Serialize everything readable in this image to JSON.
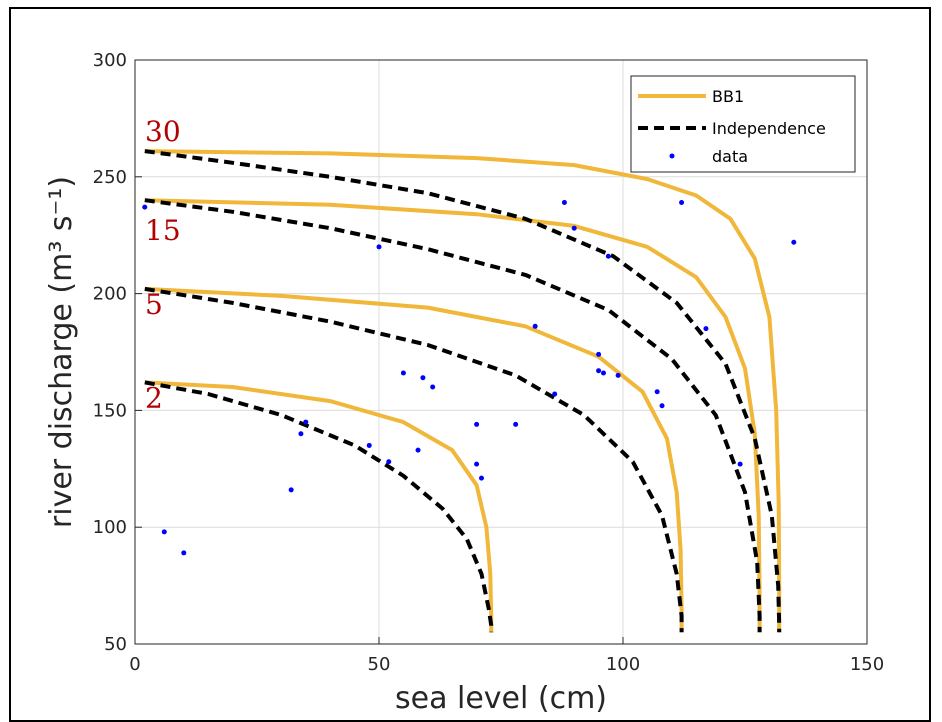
{
  "chart_data": {
    "type": "line",
    "xlabel": "sea level (cm)",
    "ylabel": "river discharge (m³ s⁻¹)",
    "xlim": [
      0,
      150
    ],
    "ylim": [
      50,
      300
    ],
    "xticks": [
      "0",
      "50",
      "100",
      "150"
    ],
    "yticks": [
      "50",
      "100",
      "150",
      "200",
      "250",
      "300"
    ],
    "grid": true,
    "legend_position": "top-right",
    "colors": {
      "bb1": "#f0b73a",
      "independence": "#000000",
      "data": "#0000ff",
      "return_period_label": "#b30000"
    },
    "legend": [
      {
        "name": "BB1",
        "style": "solid",
        "color": "#f0b73a"
      },
      {
        "name": "Independence",
        "style": "dashed",
        "color": "#000000"
      },
      {
        "name": "data",
        "style": "marker",
        "color": "#0000ff"
      }
    ],
    "return_periods": [
      {
        "label": "2",
        "x0": 2,
        "y0": 162,
        "x_asym": 73,
        "y_min": 55
      },
      {
        "label": "5",
        "x0": 2,
        "y0": 202,
        "x_asym": 112,
        "y_min": 55
      },
      {
        "label": "15",
        "x0": 2,
        "y0": 240,
        "x_asym": 128,
        "y_min": 55
      },
      {
        "label": "30",
        "x0": 2,
        "y0": 261,
        "x_asym": 132,
        "y_min": 55
      }
    ],
    "series": [
      {
        "name": "BB1",
        "curves": [
          {
            "x": [
              2,
              20,
              40,
              55,
              65,
              70,
              72,
              72.8,
              73,
              73
            ],
            "y": [
              162,
              160,
              154,
              145,
              133,
              118,
              100,
              80,
              62,
              55
            ]
          },
          {
            "x": [
              2,
              30,
              60,
              80,
              95,
              104,
              109,
              111,
              111.8,
              112,
              112
            ],
            "y": [
              202,
              199,
              194,
              186,
              173,
              158,
              138,
              115,
              90,
              65,
              55
            ]
          },
          {
            "x": [
              2,
              40,
              70,
              90,
              105,
              115,
              121,
              125,
              127,
              127.8,
              128,
              128
            ],
            "y": [
              240,
              238,
              234,
              229,
              220,
              207,
              190,
              168,
              140,
              105,
              70,
              55
            ]
          },
          {
            "x": [
              2,
              40,
              70,
              90,
              105,
              115,
              122,
              127,
              130,
              131.4,
              131.9,
              132,
              132
            ],
            "y": [
              261,
              260,
              258,
              255,
              249,
              242,
              232,
              215,
              190,
              150,
              110,
              75,
              55
            ]
          }
        ]
      },
      {
        "name": "Independence",
        "curves": [
          {
            "x": [
              2,
              15,
              30,
              45,
              55,
              63,
              68,
              71,
              72.5,
              73,
              73
            ],
            "y": [
              162,
              157,
              148,
              135,
              122,
              108,
              95,
              80,
              65,
              58,
              55
            ]
          },
          {
            "x": [
              2,
              20,
              40,
              60,
              78,
              92,
              102,
              108,
              111,
              112,
              112
            ],
            "y": [
              202,
              196,
              188,
              178,
              165,
              148,
              128,
              105,
              80,
              62,
              55
            ]
          },
          {
            "x": [
              2,
              20,
              40,
              60,
              80,
              97,
              110,
              119,
              125,
              127.5,
              128,
              128
            ],
            "y": [
              240,
              235,
              228,
              219,
              208,
              193,
              172,
              148,
              115,
              85,
              62,
              55
            ]
          },
          {
            "x": [
              2,
              20,
              40,
              60,
              80,
              98,
              111,
              121,
              127,
              130.5,
              131.8,
              132,
              132
            ],
            "y": [
              261,
              256,
              250,
              243,
              232,
              216,
              196,
              170,
              138,
              105,
              75,
              58,
              55
            ]
          }
        ]
      },
      {
        "name": "data",
        "points": [
          [
            2,
            237
          ],
          [
            6,
            98
          ],
          [
            10,
            89
          ],
          [
            32,
            116
          ],
          [
            34,
            140
          ],
          [
            35,
            145
          ],
          [
            48,
            135
          ],
          [
            50,
            220
          ],
          [
            52,
            128
          ],
          [
            55,
            166
          ],
          [
            58,
            133
          ],
          [
            59,
            164
          ],
          [
            61,
            160
          ],
          [
            70,
            144
          ],
          [
            70,
            127
          ],
          [
            71,
            121
          ],
          [
            78,
            144
          ],
          [
            82,
            186
          ],
          [
            86,
            157
          ],
          [
            88,
            239
          ],
          [
            90,
            228
          ],
          [
            95,
            174
          ],
          [
            95,
            167
          ],
          [
            96,
            166
          ],
          [
            97,
            216
          ],
          [
            99,
            165
          ],
          [
            107,
            158
          ],
          [
            108,
            152
          ],
          [
            112,
            239
          ],
          [
            117,
            185
          ],
          [
            124,
            127
          ],
          [
            135,
            222
          ]
        ]
      }
    ]
  }
}
